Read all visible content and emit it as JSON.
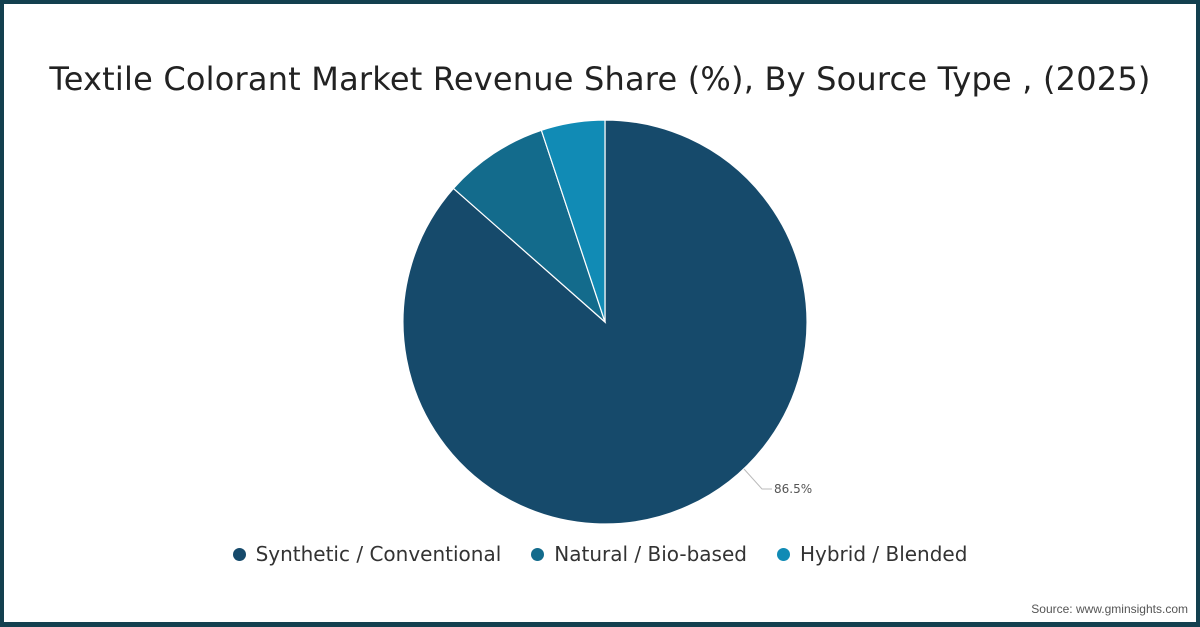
{
  "chart_data": {
    "type": "pie",
    "title": "Textile Colorant Market Revenue Share (%), By Source Type , (2025)",
    "categories": [
      "Synthetic / Conventional",
      "Natural / Bio-based",
      "Hybrid / Blended"
    ],
    "values": [
      86.5,
      8.4,
      5.1
    ],
    "colors": [
      "#164a6b",
      "#136b8c",
      "#118bb5"
    ],
    "data_labels": [
      "86.5%",
      "",
      ""
    ],
    "legend_position": "bottom"
  },
  "source": "Source: www.gminsights.com"
}
